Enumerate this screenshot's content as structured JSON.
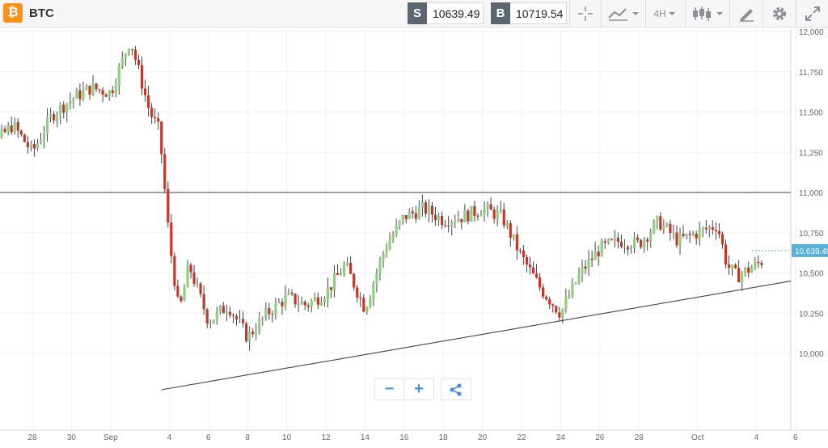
{
  "header": {
    "symbol": "BTC",
    "coin_glyph": "₿",
    "sell_label": "S",
    "sell_price": "10639.49",
    "buy_label": "B",
    "buy_price": "10719.54",
    "interval": "4H",
    "icons": [
      "crosshair-icon",
      "line-chart-icon",
      "candlestick-icon",
      "drawing-tools-icon",
      "settings-gear-icon",
      "fullscreen-icon"
    ],
    "accent_color": "#f7931a"
  },
  "zoom_controls": {
    "minus": "−",
    "plus": "+",
    "icons": [
      "zoom-out-icon",
      "zoom-in-icon",
      "share-icon"
    ]
  },
  "chart_data": {
    "type": "candlestick",
    "instrument": "BTC",
    "interval": "4H",
    "y_ticks": [
      "12,000",
      "11,750",
      "11,500",
      "11,250",
      "11,000",
      "10,750",
      "10,500",
      "10,250",
      "10,000"
    ],
    "ylim": [
      9800,
      12020
    ],
    "x_ticks": [
      "28",
      "30",
      "Sep",
      "4",
      "6",
      "8",
      "10",
      "12",
      "14",
      "16",
      "18",
      "20",
      "22",
      "24",
      "26",
      "28",
      "Oct",
      "4",
      "6"
    ],
    "current_price": 10639.49,
    "current_price_label": "10,639.49",
    "horizontal_level": 11000,
    "trendline": {
      "start": [
        "Sep 4",
        9820
      ],
      "end": [
        "Oct 6",
        10450
      ]
    },
    "up_color": "#8fcf7f",
    "down_color": "#c0392b",
    "candles_close_path": [
      [
        "Aug 26",
        11300
      ],
      [
        "Aug 27",
        11420
      ],
      [
        "Aug 28",
        11250
      ],
      [
        "Aug 29",
        11480
      ],
      [
        "Aug 30",
        11580
      ],
      [
        "Aug 31",
        11650
      ],
      [
        "Sep 1",
        11620
      ],
      [
        "Sep 2",
        11950
      ],
      [
        "Sep 3",
        11500
      ],
      [
        "Sep 3 12h",
        11380
      ],
      [
        "Sep 4",
        10700
      ],
      [
        "Sep 4 12h",
        10250
      ],
      [
        "Sep 5",
        10550
      ],
      [
        "Sep 6",
        10200
      ],
      [
        "Sep 7",
        10300
      ],
      [
        "Sep 8",
        10100
      ],
      [
        "Sep 9",
        10250
      ],
      [
        "Sep 10",
        10350
      ],
      [
        "Sep 11",
        10300
      ],
      [
        "Sep 12",
        10380
      ],
      [
        "Sep 13",
        10550
      ],
      [
        "Sep 14",
        10280
      ],
      [
        "Sep 15",
        10650
      ],
      [
        "Sep 16",
        10850
      ],
      [
        "Sep 17",
        10900
      ],
      [
        "Sep 18",
        10830
      ],
      [
        "Sep 19",
        10850
      ],
      [
        "Sep 20",
        10900
      ],
      [
        "Sep 21",
        10850
      ],
      [
        "Sep 22",
        10600
      ],
      [
        "Sep 23",
        10400
      ],
      [
        "Sep 24",
        10250
      ],
      [
        "Sep 25",
        10500
      ],
      [
        "Sep 26",
        10650
      ],
      [
        "Sep 27",
        10700
      ],
      [
        "Sep 28",
        10680
      ],
      [
        "Sep 29",
        10820
      ],
      [
        "Sep 30",
        10700
      ],
      [
        "Oct 1",
        10750
      ],
      [
        "Oct 2",
        10800
      ],
      [
        "Oct 2 12h",
        10550
      ],
      [
        "Oct 3",
        10480
      ],
      [
        "Oct 4",
        10550
      ],
      [
        "Oct 5",
        10639
      ]
    ]
  }
}
